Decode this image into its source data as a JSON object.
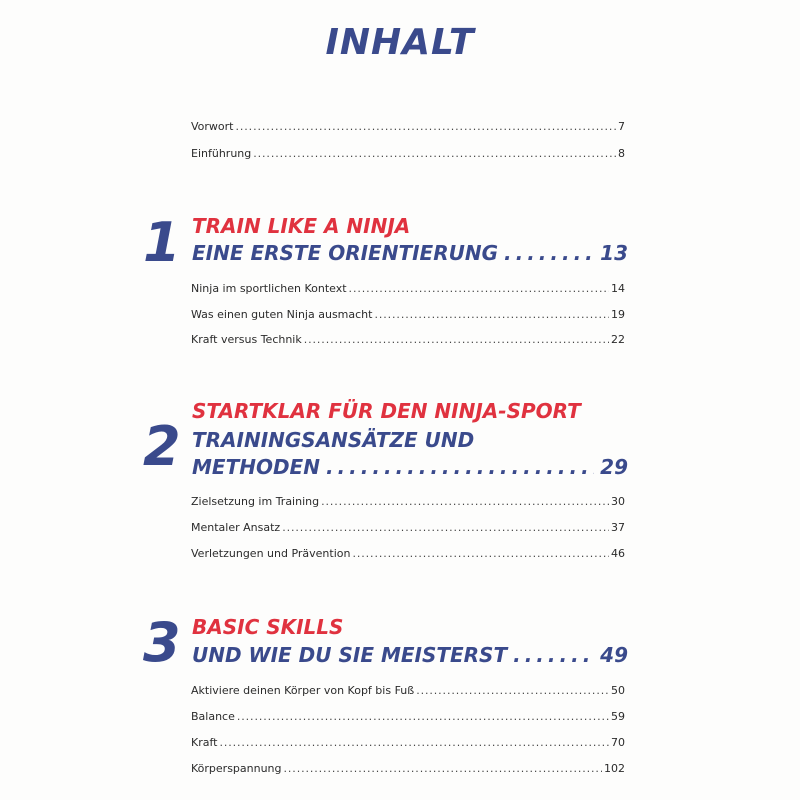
{
  "title": "INHALT",
  "intro": [
    {
      "label": "Vorwort",
      "page": "7"
    },
    {
      "label": "Einführung",
      "page": "8"
    }
  ],
  "chapters": [
    {
      "number": "1",
      "headline_red": "TRAIN LIKE A NINJA",
      "headline_blue": [
        "EINE ERSTE ORIENTIERUNG"
      ],
      "page": "13",
      "entries": [
        {
          "label": "Ninja im sportlichen Kontext",
          "page": "14"
        },
        {
          "label": "Was einen guten Ninja ausmacht",
          "page": "19"
        },
        {
          "label": "Kraft versus Technik",
          "page": "22"
        }
      ]
    },
    {
      "number": "2",
      "headline_red": "STARTKLAR FÜR DEN NINJA-SPORT",
      "headline_blue": [
        "TRAININGSANSÄTZE UND",
        "METHODEN"
      ],
      "page": "29",
      "entries": [
        {
          "label": "Zielsetzung im Training",
          "page": "30"
        },
        {
          "label": "Mentaler Ansatz",
          "page": "37"
        },
        {
          "label": "Verletzungen und Prävention",
          "page": "46"
        }
      ]
    },
    {
      "number": "3",
      "headline_red": "BASIC SKILLS",
      "headline_blue": [
        "UND WIE DU SIE MEISTERST"
      ],
      "page": "49",
      "entries": [
        {
          "label": "Aktiviere deinen Körper von Kopf bis Fuß",
          "page": "50"
        },
        {
          "label": "Balance",
          "page": "59"
        },
        {
          "label": "Kraft",
          "page": "70"
        },
        {
          "label": "Körperspannung",
          "page": "102"
        }
      ]
    }
  ],
  "colors": {
    "accent_red": "#e0323f",
    "accent_blue": "#3a4a8c"
  }
}
